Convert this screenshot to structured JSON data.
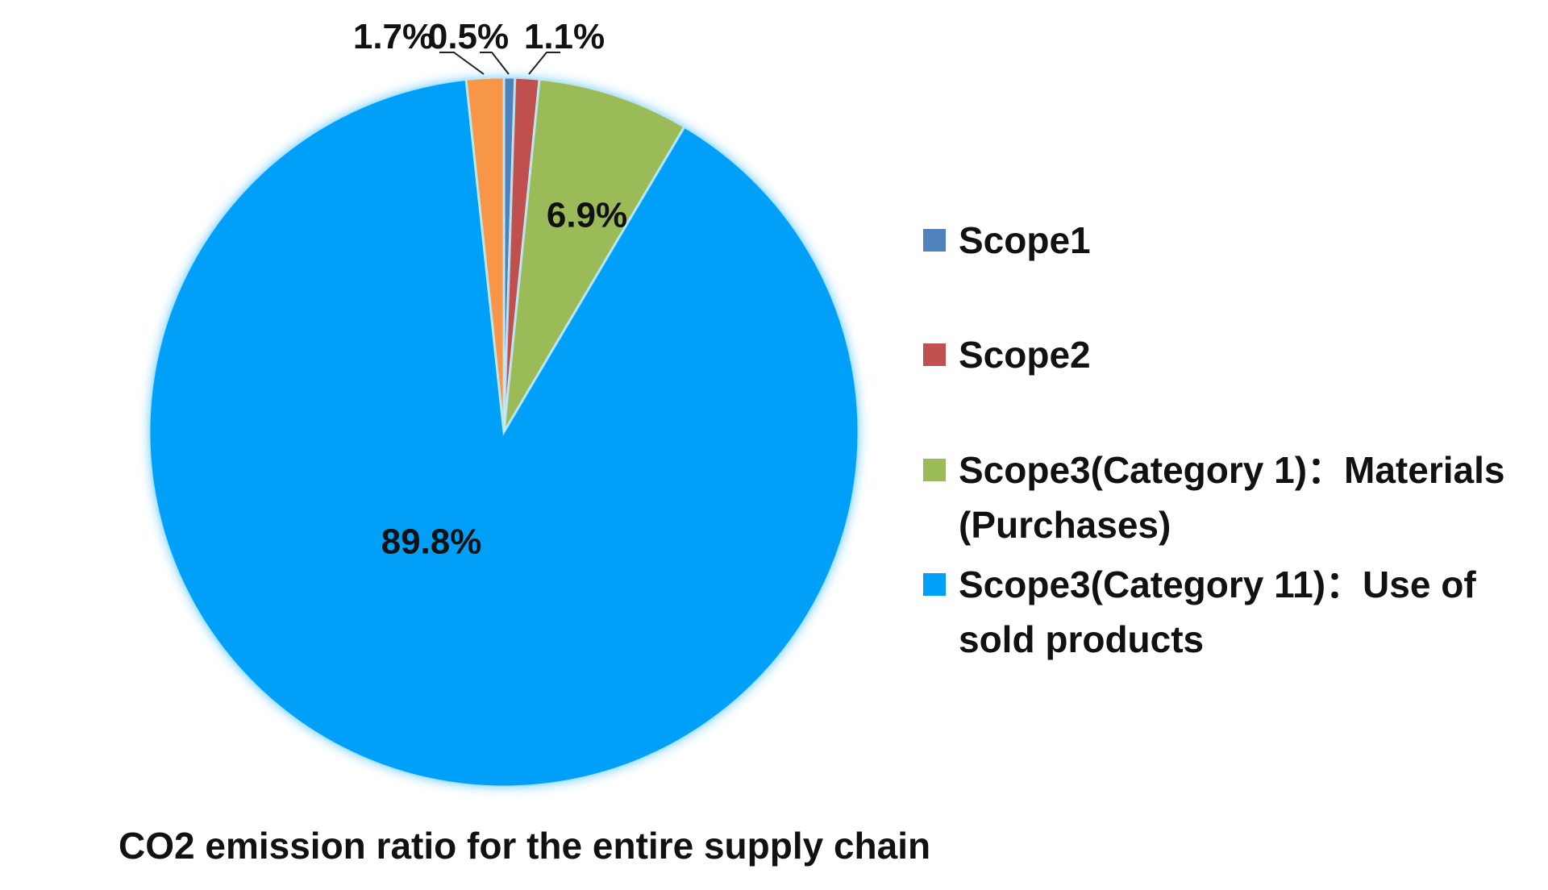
{
  "chart_data": {
    "type": "pie",
    "title": "CO2 emission ratio for the entire supply chain",
    "legend_position": "right",
    "slices": [
      {
        "name": "Scope1",
        "legend_lines": [
          "Scope1"
        ],
        "value": 0.5,
        "label": "0.5%",
        "color": "#4F81BD"
      },
      {
        "name": "Scope2",
        "legend_lines": [
          "Scope2"
        ],
        "value": 1.1,
        "label": "1.1%",
        "color": "#C0504D"
      },
      {
        "name": "Scope3(Category 1)：Materials (Purchases)",
        "legend_lines": [
          "Scope3(Category 1)：Materials",
          "(Purchases)"
        ],
        "value": 6.9,
        "label": "6.9%",
        "color": "#9BBB59"
      },
      {
        "name": "Scope3(Category 11)：Use of sold products",
        "legend_lines": [
          "Scope3(Category 11)：Use of",
          "sold products"
        ],
        "value": 89.8,
        "label": "89.8%",
        "color": "#00A0F8"
      },
      {
        "name": "",
        "legend_lines": [],
        "value": 1.7,
        "label": "1.7%",
        "color": "#F79646"
      }
    ]
  }
}
